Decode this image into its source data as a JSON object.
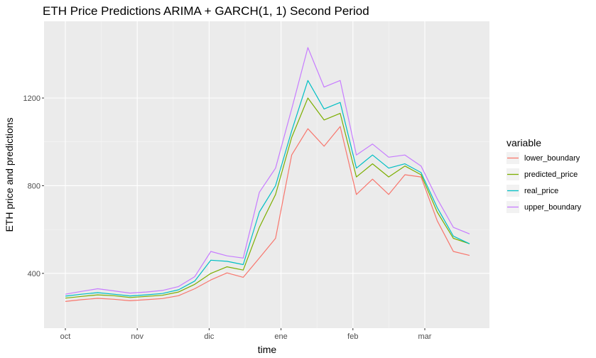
{
  "chart_data": {
    "type": "line",
    "title": "ETH Price Predictions ARIMA + GARCH(1, 1) Second Period",
    "xlabel": "time",
    "ylabel": "ETH price and predictions",
    "x_ticks": [
      "oct",
      "nov",
      "dic",
      "ene",
      "feb",
      "mar"
    ],
    "y_ticks": [
      400,
      800,
      1200
    ],
    "ylim": [
      150,
      1550
    ],
    "grid": true,
    "legend": {
      "title": "variable",
      "placement": "right"
    },
    "x": [
      "oct-01",
      "oct-08",
      "oct-15",
      "oct-22",
      "oct-29",
      "nov-05",
      "nov-12",
      "nov-19",
      "nov-26",
      "dic-03",
      "dic-10",
      "dic-17",
      "dic-24",
      "dic-31",
      "ene-07",
      "ene-14",
      "ene-21",
      "ene-28",
      "feb-04",
      "feb-11",
      "feb-18",
      "feb-25",
      "mar-04",
      "mar-11",
      "mar-18",
      "mar-25"
    ],
    "series": [
      {
        "name": "lower_boundary",
        "color": "#F8766D",
        "values": [
          272,
          280,
          286,
          282,
          275,
          280,
          285,
          298,
          330,
          370,
          402,
          382,
          470,
          560,
          940,
          1060,
          980,
          1070,
          760,
          830,
          760,
          850,
          840,
          640,
          500,
          482
        ]
      },
      {
        "name": "predicted_price",
        "color": "#7CAE00",
        "values": [
          287,
          295,
          302,
          298,
          290,
          295,
          300,
          315,
          350,
          400,
          430,
          415,
          610,
          760,
          1020,
          1200,
          1100,
          1130,
          840,
          900,
          840,
          890,
          850,
          680,
          560,
          535
        ]
      },
      {
        "name": "real_price",
        "color": "#00BFC4",
        "values": [
          296,
          305,
          312,
          305,
          297,
          302,
          308,
          325,
          365,
          460,
          455,
          440,
          680,
          800,
          1050,
          1280,
          1150,
          1180,
          880,
          940,
          880,
          900,
          860,
          700,
          570,
          535
        ]
      },
      {
        "name": "upper_boundary",
        "color": "#C77CFF",
        "values": [
          305,
          318,
          330,
          320,
          310,
          315,
          322,
          340,
          385,
          500,
          480,
          470,
          770,
          880,
          1150,
          1430,
          1250,
          1280,
          940,
          990,
          930,
          940,
          890,
          740,
          610,
          580
        ]
      }
    ]
  }
}
